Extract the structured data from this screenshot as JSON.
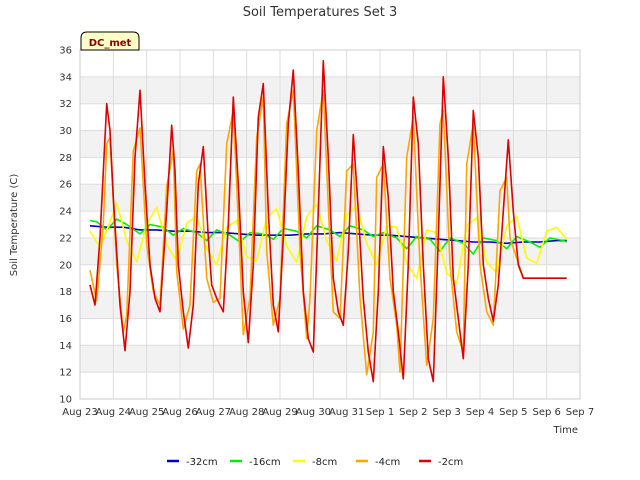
{
  "chart_data": {
    "type": "line",
    "title": "Soil Temperatures Set 3",
    "xlabel": "Time",
    "ylabel": "Soil Temperature (C)",
    "badge": "DC_met",
    "ylim": [
      10,
      36
    ],
    "yticks": [
      10,
      12,
      14,
      16,
      18,
      20,
      22,
      24,
      26,
      28,
      30,
      32,
      34,
      36
    ],
    "xlim": [
      0,
      15
    ],
    "xticks": [
      "Aug 23",
      "Aug 24",
      "Aug 25",
      "Aug 26",
      "Aug 27",
      "Aug 28",
      "Aug 29",
      "Aug 30",
      "Aug 31",
      "Sep 1",
      "Sep 2",
      "Sep 3",
      "Sep 4",
      "Sep 5",
      "Sep 6",
      "Sep 7"
    ],
    "grid": true,
    "legend_position": "bottom-center",
    "series": [
      {
        "name": "-32cm",
        "color": "#0000cc",
        "x": [
          0.3,
          0.8,
          1.3,
          1.8,
          2.3,
          2.8,
          3.3,
          3.8,
          4.3,
          4.8,
          5.3,
          5.8,
          6.3,
          6.8,
          7.3,
          7.8,
          8.3,
          8.8,
          9.3,
          9.8,
          10.3,
          10.8,
          11.3,
          11.8,
          12.3,
          12.8,
          13.3,
          13.8,
          14.3,
          14.6
        ],
        "y": [
          22.9,
          22.8,
          22.8,
          22.6,
          22.6,
          22.5,
          22.5,
          22.4,
          22.4,
          22.3,
          22.2,
          22.2,
          22.2,
          22.3,
          22.3,
          22.4,
          22.3,
          22.2,
          22.2,
          22.1,
          22.0,
          21.9,
          21.8,
          21.7,
          21.7,
          21.6,
          21.7,
          21.7,
          21.8,
          21.8
        ]
      },
      {
        "name": "-16cm",
        "color": "#00ee00",
        "x": [
          0.3,
          0.5,
          0.8,
          1.1,
          1.4,
          1.8,
          2.1,
          2.5,
          2.8,
          3.1,
          3.5,
          3.8,
          4.1,
          4.5,
          4.8,
          5.1,
          5.5,
          5.8,
          6.1,
          6.5,
          6.8,
          7.1,
          7.5,
          7.8,
          8.1,
          8.5,
          8.8,
          9.1,
          9.5,
          9.8,
          10.1,
          10.5,
          10.8,
          11.1,
          11.5,
          11.8,
          12.1,
          12.5,
          12.8,
          13.1,
          13.5,
          13.8,
          14.1,
          14.5,
          14.6
        ],
        "y": [
          23.3,
          23.2,
          22.6,
          23.4,
          23.0,
          22.3,
          23.0,
          22.8,
          22.2,
          22.7,
          22.4,
          21.8,
          22.6,
          22.2,
          21.7,
          22.4,
          22.3,
          21.9,
          22.7,
          22.5,
          22.0,
          22.9,
          22.6,
          22.1,
          22.9,
          22.6,
          22.1,
          22.4,
          22.0,
          21.2,
          22.1,
          21.9,
          21.0,
          22.0,
          21.6,
          20.8,
          22.0,
          21.8,
          21.2,
          22.1,
          21.7,
          21.3,
          22.0,
          21.8,
          21.7
        ]
      },
      {
        "name": "-8cm",
        "color": "#ffff00",
        "x": [
          0.3,
          0.6,
          0.9,
          1.1,
          1.4,
          1.7,
          2.0,
          2.3,
          2.6,
          2.9,
          3.2,
          3.5,
          3.8,
          4.1,
          4.4,
          4.7,
          5.0,
          5.3,
          5.6,
          5.9,
          6.2,
          6.5,
          6.8,
          7.1,
          7.4,
          7.7,
          8.0,
          8.3,
          8.6,
          8.9,
          9.2,
          9.5,
          9.8,
          10.1,
          10.4,
          10.7,
          11.0,
          11.3,
          11.6,
          11.9,
          12.2,
          12.5,
          12.8,
          13.1,
          13.4,
          13.7,
          14.0,
          14.3,
          14.6
        ],
        "y": [
          22.5,
          21.3,
          23.2,
          24.6,
          21.8,
          20.2,
          23.0,
          24.3,
          21.5,
          20.3,
          23.1,
          23.6,
          21.2,
          20.0,
          22.8,
          23.3,
          20.6,
          20.3,
          23.5,
          24.2,
          21.4,
          20.2,
          23.6,
          24.5,
          21.8,
          20.3,
          23.7,
          24.4,
          21.6,
          20.0,
          22.9,
          22.8,
          20.1,
          19.0,
          22.6,
          22.4,
          19.4,
          18.6,
          22.9,
          23.5,
          20.2,
          19.4,
          22.9,
          23.6,
          20.5,
          20.1,
          22.5,
          22.8,
          21.9
        ]
      },
      {
        "name": "-4cm",
        "color": "#ffa500",
        "x": [
          0.3,
          0.5,
          0.7,
          0.8,
          0.9,
          1.1,
          1.3,
          1.4,
          1.6,
          1.8,
          2.0,
          2.2,
          2.4,
          2.6,
          2.8,
          2.9,
          3.1,
          3.3,
          3.5,
          3.6,
          3.8,
          4.0,
          4.2,
          4.4,
          4.6,
          4.8,
          4.9,
          5.1,
          5.3,
          5.5,
          5.6,
          5.8,
          6.0,
          6.2,
          6.4,
          6.6,
          6.8,
          6.9,
          7.1,
          7.3,
          7.5,
          7.6,
          7.8,
          8.0,
          8.2,
          8.4,
          8.6,
          8.8,
          8.9,
          9.1,
          9.3,
          9.5,
          9.6,
          9.8,
          10.0,
          10.2,
          10.4,
          10.6,
          10.8,
          10.9,
          11.1,
          11.3,
          11.5,
          11.6,
          11.8,
          12.0,
          12.2,
          12.4,
          12.6,
          12.8,
          12.9,
          13.1,
          13.3,
          13.5,
          13.6,
          13.8,
          14.0,
          14.2,
          14.4,
          14.6
        ],
        "y": [
          19.6,
          17.3,
          23.0,
          29.0,
          29.5,
          20.0,
          15.0,
          16.2,
          28.5,
          30.2,
          21.5,
          18.0,
          17.0,
          25.8,
          28.5,
          19.5,
          15.2,
          17.0,
          27.0,
          27.5,
          19.0,
          17.2,
          17.5,
          29.0,
          31.5,
          20.5,
          14.8,
          17.5,
          29.5,
          32.5,
          21.0,
          15.5,
          17.5,
          30.5,
          33.0,
          21.0,
          14.5,
          17.5,
          30.0,
          33.0,
          21.5,
          16.5,
          16.0,
          27.0,
          27.5,
          17.5,
          11.8,
          15.0,
          26.5,
          27.5,
          19.0,
          15.5,
          12.0,
          28.0,
          31.0,
          20.0,
          12.5,
          16.0,
          30.5,
          31.5,
          20.0,
          15.0,
          13.5,
          27.5,
          30.5,
          20.0,
          16.5,
          15.5,
          25.5,
          26.5,
          22.0,
          20.5,
          19.0,
          19.0,
          19.0,
          19.0,
          19.0,
          19.0,
          19.0,
          19.0
        ]
      },
      {
        "name": "-2cm",
        "color": "#dd0000",
        "x": [
          0.3,
          0.45,
          0.6,
          0.8,
          0.9,
          1.0,
          1.2,
          1.35,
          1.5,
          1.65,
          1.8,
          1.95,
          2.1,
          2.25,
          2.4,
          2.6,
          2.75,
          2.85,
          2.95,
          3.1,
          3.25,
          3.4,
          3.55,
          3.7,
          3.85,
          3.95,
          4.1,
          4.3,
          4.45,
          4.6,
          4.75,
          4.9,
          5.05,
          5.2,
          5.35,
          5.5,
          5.65,
          5.8,
          5.95,
          6.1,
          6.25,
          6.4,
          6.55,
          6.7,
          6.85,
          7.0,
          7.15,
          7.3,
          7.45,
          7.6,
          7.75,
          7.9,
          8.05,
          8.2,
          8.35,
          8.5,
          8.65,
          8.8,
          8.95,
          9.1,
          9.25,
          9.4,
          9.55,
          9.7,
          9.85,
          10.0,
          10.15,
          10.3,
          10.45,
          10.6,
          10.75,
          10.9,
          11.05,
          11.2,
          11.35,
          11.5,
          11.65,
          11.8,
          11.95,
          12.1,
          12.25,
          12.4,
          12.55,
          12.7,
          12.85,
          13.0,
          13.15,
          13.3,
          13.45,
          13.6,
          13.75,
          13.9,
          14.05,
          14.2,
          14.35,
          14.5,
          14.6
        ],
        "y": [
          18.5,
          17.0,
          22.0,
          32.0,
          30.0,
          25.0,
          17.0,
          13.6,
          18.0,
          28.0,
          33.0,
          26.0,
          20.0,
          17.5,
          16.5,
          24.0,
          30.4,
          27.0,
          20.0,
          16.5,
          13.8,
          17.0,
          26.0,
          28.8,
          22.0,
          18.5,
          17.5,
          16.5,
          23.0,
          32.5,
          26.0,
          18.0,
          14.2,
          20.0,
          31.0,
          33.5,
          24.0,
          17.0,
          15.0,
          22.0,
          30.5,
          34.5,
          27.0,
          18.0,
          14.5,
          13.5,
          24.0,
          35.2,
          28.0,
          19.0,
          16.5,
          15.5,
          21.0,
          29.7,
          24.0,
          17.5,
          13.5,
          11.3,
          18.0,
          28.8,
          25.0,
          18.0,
          15.0,
          11.5,
          20.0,
          32.5,
          29.0,
          20.0,
          13.0,
          11.3,
          22.0,
          34.0,
          28.0,
          19.0,
          16.0,
          13.0,
          20.0,
          31.5,
          28.0,
          20.0,
          17.5,
          15.8,
          18.5,
          24.0,
          29.3,
          24.0,
          20.0,
          19.0,
          19.0,
          19.0,
          19.0,
          19.0,
          19.0,
          19.0,
          19.0,
          19.0,
          19.0
        ]
      }
    ]
  }
}
